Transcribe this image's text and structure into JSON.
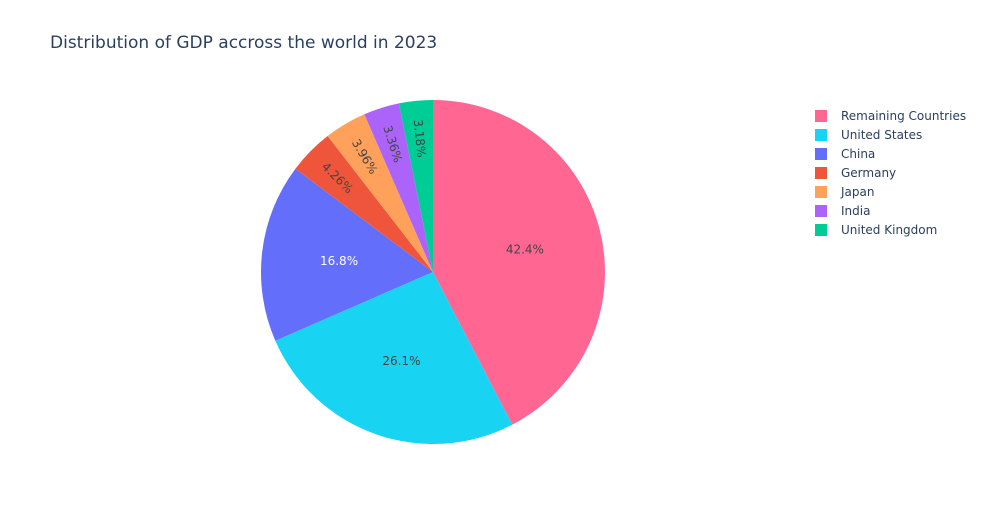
{
  "chart_data": {
    "type": "pie",
    "title": "Distribution of GDP accross the world in 2023",
    "categories": [
      "Remaining Countries",
      "United States",
      "China",
      "Germany",
      "Japan",
      "India",
      "United Kingdom"
    ],
    "values": [
      42.4,
      26.1,
      16.8,
      4.26,
      3.96,
      3.36,
      3.18
    ],
    "data_labels": [
      "42.4%",
      "26.1%",
      "16.8%",
      "4.26%",
      "3.96%",
      "3.36%",
      "3.18%"
    ],
    "colors": [
      "#ff6692",
      "#19d3f3",
      "#636efa",
      "#ef553b",
      "#ffa15a",
      "#ab63fa",
      "#00cc96"
    ],
    "legend_order": [
      0,
      1,
      2,
      3,
      4,
      5,
      6
    ],
    "legend_position": "top-right",
    "direction": "clockwise",
    "start": "top"
  }
}
